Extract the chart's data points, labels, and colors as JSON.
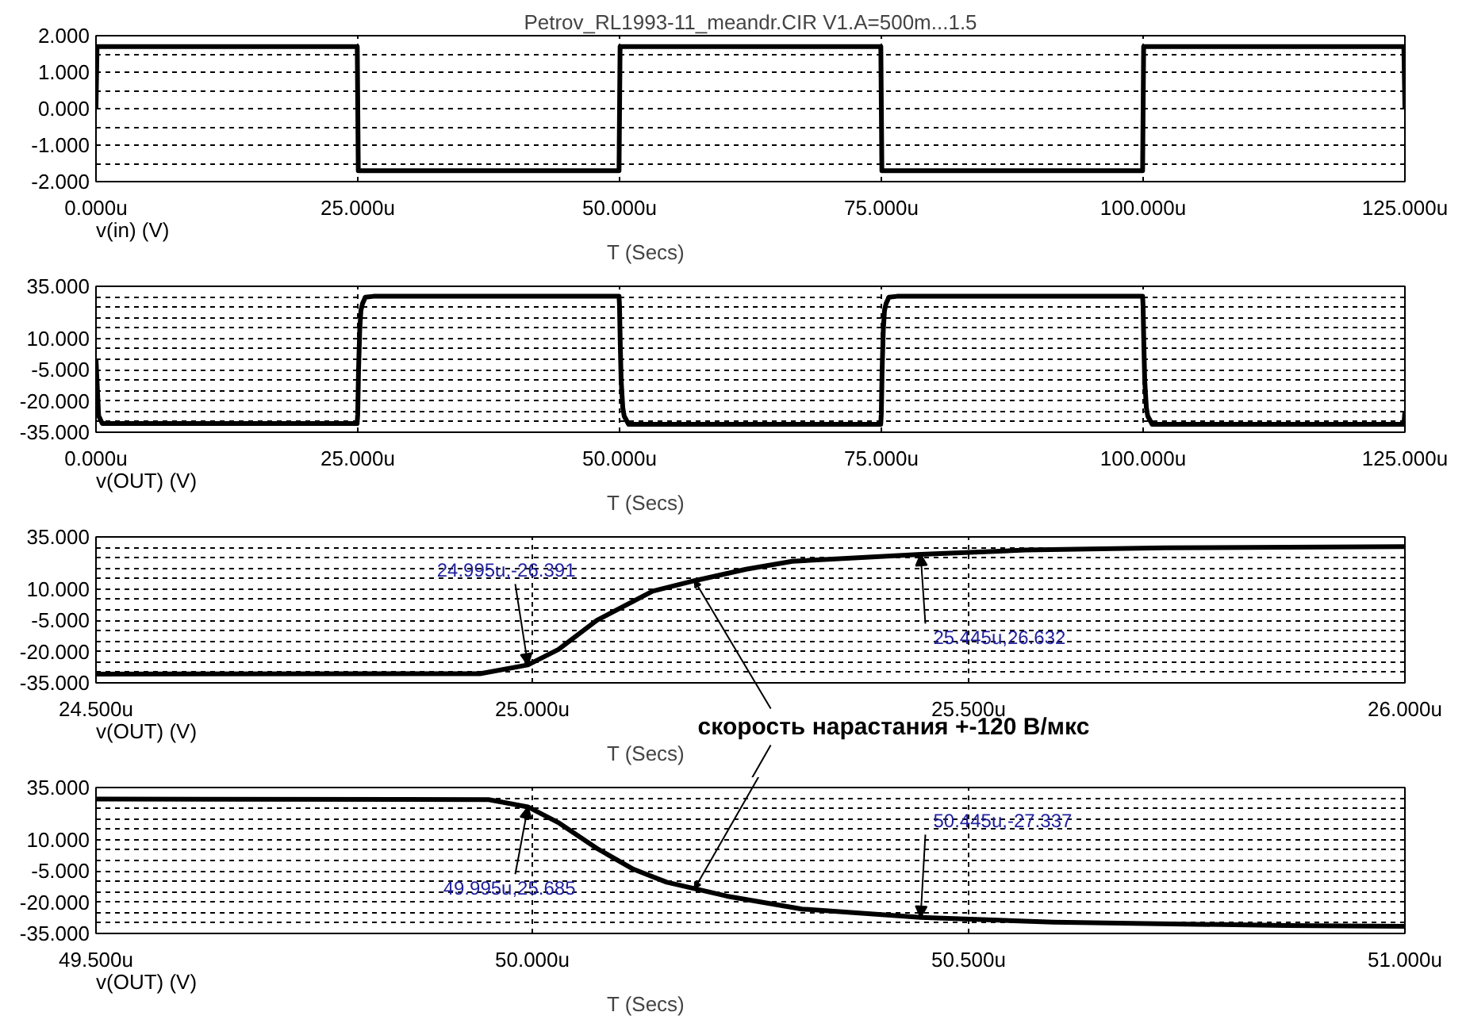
{
  "chart_data": [
    {
      "type": "line",
      "title": "Petrov_RL1993-11_meandr.CIR V1.A=500m...1.5",
      "xlabel": "T (Secs)",
      "x": [
        0,
        0.1,
        24.95,
        25.05,
        49.95,
        50.05,
        74.95,
        75.05,
        99.95,
        100.05,
        124.9,
        125
      ],
      "series": [
        {
          "name": "v(in) (V)",
          "color": "#000000",
          "values": [
            0,
            1.7,
            1.7,
            -1.7,
            -1.7,
            1.7,
            1.7,
            -1.7,
            -1.7,
            1.7,
            1.7,
            0
          ]
        }
      ],
      "xlim": [
        0,
        125
      ],
      "xticks": [
        {
          "value": 0,
          "label": "0.000u"
        },
        {
          "value": 25,
          "label": "25.000u"
        },
        {
          "value": 50,
          "label": "50.000u"
        },
        {
          "value": 75,
          "label": "75.000u"
        },
        {
          "value": 100,
          "label": "100.000u"
        },
        {
          "value": 125,
          "label": "125.000u"
        }
      ],
      "ylim": [
        -2,
        2
      ],
      "yticks": [
        {
          "value": -2,
          "label": "-2.000"
        },
        {
          "value": -1.5,
          "label": null
        },
        {
          "value": -1,
          "label": "-1.000"
        },
        {
          "value": -0.5,
          "label": null
        },
        {
          "value": 0,
          "label": "0.000"
        },
        {
          "value": 0.5,
          "label": null
        },
        {
          "value": 1,
          "label": "1.000"
        },
        {
          "value": 1.5,
          "label": null
        },
        {
          "value": 2,
          "label": "2.000"
        }
      ],
      "grid": true
    },
    {
      "type": "line",
      "xlabel": "T (Secs)",
      "x": [
        0,
        0.25,
        0.6,
        24.94,
        24.995,
        25.074,
        25.186,
        25.298,
        25.445,
        25.725,
        26.5,
        49.95,
        49.995,
        50.074,
        50.154,
        50.309,
        50.445,
        50.864,
        51.5,
        74.94,
        74.995,
        75.074,
        75.186,
        75.298,
        75.445,
        75.725,
        76.5,
        99.95,
        99.995,
        100.074,
        100.154,
        100.309,
        100.445,
        100.864,
        124.9,
        125
      ],
      "series": [
        {
          "name": "v(OUT) (V)",
          "color": "#000000",
          "values": [
            0,
            -27,
            -30.8,
            -30.8,
            -26.4,
            -5,
            14,
            23.3,
            26.6,
            29.8,
            30.2,
            30.2,
            25.7,
            5.8,
            -10.4,
            -23.3,
            -27.3,
            -31.2,
            -31.2,
            -31.2,
            -26.4,
            -5,
            14,
            23.3,
            26.6,
            29.8,
            30.2,
            30.2,
            25.7,
            5.8,
            -10.4,
            -23.3,
            -27.3,
            -31.2,
            -31.2,
            -25
          ]
        }
      ],
      "xlim": [
        0,
        125
      ],
      "xticks": [
        {
          "value": 0,
          "label": "0.000u"
        },
        {
          "value": 25,
          "label": "25.000u"
        },
        {
          "value": 50,
          "label": "50.000u"
        },
        {
          "value": 75,
          "label": "75.000u"
        },
        {
          "value": 100,
          "label": "100.000u"
        },
        {
          "value": 125,
          "label": "125.000u"
        }
      ],
      "ylim": [
        -35,
        35
      ],
      "yticks": [
        {
          "value": -35,
          "label": "-35.000"
        },
        {
          "value": -30,
          "label": null
        },
        {
          "value": -25,
          "label": null
        },
        {
          "value": -20,
          "label": "-20.000"
        },
        {
          "value": -15,
          "label": null
        },
        {
          "value": -10,
          "label": null
        },
        {
          "value": -5,
          "label": "-5.000"
        },
        {
          "value": 0,
          "label": null
        },
        {
          "value": 5,
          "label": null
        },
        {
          "value": 10,
          "label": "10.000"
        },
        {
          "value": 15,
          "label": null
        },
        {
          "value": 20,
          "label": null
        },
        {
          "value": 25,
          "label": null
        },
        {
          "value": 30,
          "label": null
        },
        {
          "value": 35,
          "label": "35.000"
        }
      ],
      "grid": true
    },
    {
      "type": "line",
      "xlabel": "T (Secs)",
      "x": [
        24.5,
        24.94,
        24.995,
        25.03,
        25.074,
        25.138,
        25.186,
        25.245,
        25.298,
        25.445,
        25.565,
        25.725,
        26.0
      ],
      "series": [
        {
          "name": "v(OUT) (V)",
          "color": "#000000",
          "values": [
            -30.8,
            -30.6,
            -26.4,
            -19,
            -5,
            9,
            14,
            19.5,
            23.3,
            26.6,
            28.7,
            29.8,
            30.3
          ]
        }
      ],
      "xlim": [
        24.5,
        26
      ],
      "xticks": [
        {
          "value": 24.5,
          "label": "24.500u"
        },
        {
          "value": 25,
          "label": "25.000u"
        },
        {
          "value": 25.5,
          "label": "25.500u"
        },
        {
          "value": 26,
          "label": "26.000u"
        }
      ],
      "ylim": [
        -35,
        35
      ],
      "yticks": [
        {
          "value": -35,
          "label": "-35.000"
        },
        {
          "value": -30,
          "label": null
        },
        {
          "value": -25,
          "label": null
        },
        {
          "value": -20,
          "label": "-20.000"
        },
        {
          "value": -15,
          "label": null
        },
        {
          "value": -10,
          "label": null
        },
        {
          "value": -5,
          "label": "-5.000"
        },
        {
          "value": 0,
          "label": null
        },
        {
          "value": 5,
          "label": null
        },
        {
          "value": 10,
          "label": "10.000"
        },
        {
          "value": 15,
          "label": null
        },
        {
          "value": 20,
          "label": null
        },
        {
          "value": 25,
          "label": null
        },
        {
          "value": 30,
          "label": null
        },
        {
          "value": 35,
          "label": "35.000"
        }
      ],
      "grid": true,
      "annotations": [
        {
          "text": "24.995u,-26.391",
          "x": 24.995,
          "y": -26.391
        },
        {
          "text": "25.445u,26.632",
          "x": 25.445,
          "y": 26.632
        },
        {
          "text": "скорость нарастания +-120 В/мкс",
          "x": 25.186,
          "y": 14
        }
      ]
    },
    {
      "type": "line",
      "xlabel": "T (Secs)",
      "x": [
        49.5,
        49.95,
        49.995,
        50.031,
        50.074,
        50.116,
        50.154,
        50.223,
        50.309,
        50.445,
        50.597,
        50.864,
        51.0
      ],
      "series": [
        {
          "name": "v(OUT) (V)",
          "color": "#000000",
          "values": [
            29.5,
            29.2,
            25.7,
            17.9,
            5.8,
            -4.2,
            -10.4,
            -17.1,
            -23.3,
            -27.3,
            -29.6,
            -31.2,
            -31.6
          ]
        }
      ],
      "xlim": [
        49.5,
        51
      ],
      "xticks": [
        {
          "value": 49.5,
          "label": "49.500u"
        },
        {
          "value": 50,
          "label": "50.000u"
        },
        {
          "value": 50.5,
          "label": "50.500u"
        },
        {
          "value": 51,
          "label": "51.000u"
        }
      ],
      "ylim": [
        -35,
        35
      ],
      "yticks": [
        {
          "value": -35,
          "label": "-35.000"
        },
        {
          "value": -30,
          "label": null
        },
        {
          "value": -25,
          "label": null
        },
        {
          "value": -20,
          "label": "-20.000"
        },
        {
          "value": -15,
          "label": null
        },
        {
          "value": -10,
          "label": null
        },
        {
          "value": -5,
          "label": "-5.000"
        },
        {
          "value": 0,
          "label": null
        },
        {
          "value": 5,
          "label": null
        },
        {
          "value": 10,
          "label": "10.000"
        },
        {
          "value": 15,
          "label": null
        },
        {
          "value": 20,
          "label": null
        },
        {
          "value": 25,
          "label": null
        },
        {
          "value": 30,
          "label": null
        },
        {
          "value": 35,
          "label": "35.000"
        }
      ],
      "grid": true,
      "annotations": [
        {
          "text": "49.995u,25.685",
          "x": 49.995,
          "y": 25.685
        },
        {
          "text": "50.445u,-27.337",
          "x": 50.445,
          "y": -27.337
        }
      ]
    }
  ]
}
